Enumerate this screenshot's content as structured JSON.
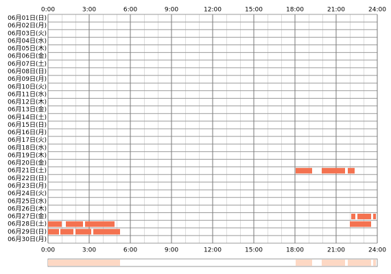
{
  "chart_data": {
    "type": "timeline",
    "categories": [
      "06月01日(日)",
      "06月02日(月)",
      "06月03日(火)",
      "06月04日(水)",
      "06月05日(木)",
      "06月06日(金)",
      "06月07日(土)",
      "06月08日(日)",
      "06月09日(月)",
      "06月10日(火)",
      "06月11日(水)",
      "06月12日(木)",
      "06月13日(金)",
      "06月14日(土)",
      "06月15日(日)",
      "06月16日(月)",
      "06月17日(火)",
      "06月18日(水)",
      "06月19日(木)",
      "06月20日(金)",
      "06月21日(土)",
      "06月22日(日)",
      "06月23日(月)",
      "06月24日(火)",
      "06月25日(水)",
      "06月26日(木)",
      "06月27日(金)",
      "06月28日(土)",
      "06月29日(日)",
      "06月30日(月)"
    ],
    "values": [
      [],
      [],
      [],
      [],
      [],
      [],
      [],
      [],
      [],
      [],
      [],
      [],
      [],
      [],
      [],
      [],
      [],
      [],
      [],
      [],
      [
        [
          18.05,
          19.25
        ],
        [
          19.95,
          21.65
        ],
        [
          21.85,
          22.35
        ]
      ],
      [],
      [],
      [],
      [],
      [],
      [
        [
          22.1,
          22.4
        ],
        [
          22.55,
          23.55
        ],
        [
          23.7,
          23.9
        ]
      ],
      [
        [
          0,
          1.0
        ],
        [
          1.3,
          2.55
        ],
        [
          2.7,
          4.85
        ],
        [
          22.0,
          23.55
        ]
      ],
      [
        [
          0,
          0.8
        ],
        [
          0.9,
          1.85
        ],
        [
          2.0,
          3.15
        ],
        [
          3.3,
          5.25
        ]
      ],
      []
    ],
    "color": "#f47250",
    "summary_color": "#fdd8c4",
    "xlim": [
      0,
      24
    ],
    "xticks": [
      {
        "value": 0,
        "label": "0:00"
      },
      {
        "value": 3,
        "label": "3:00"
      },
      {
        "value": 6,
        "label": "6:00"
      },
      {
        "value": 9,
        "label": "9:00"
      },
      {
        "value": 12,
        "label": "12:00"
      },
      {
        "value": 15,
        "label": "15:00"
      },
      {
        "value": 18,
        "label": "18:00"
      },
      {
        "value": 21,
        "label": "21:00"
      },
      {
        "value": 24,
        "label": "24:00"
      }
    ],
    "grid": true
  }
}
